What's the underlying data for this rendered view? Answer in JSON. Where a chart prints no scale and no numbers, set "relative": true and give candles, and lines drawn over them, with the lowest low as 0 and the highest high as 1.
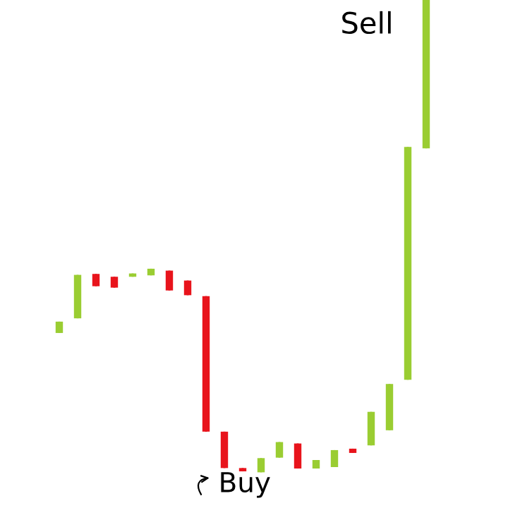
{
  "chart_data": {
    "type": "candlestick",
    "relative": true,
    "categories": [
      null,
      null,
      null,
      null,
      null,
      null,
      null,
      null,
      null,
      null,
      null,
      null,
      null,
      null,
      null,
      null,
      null,
      null,
      null,
      null,
      null
    ],
    "ohlc": [
      [
        0.295,
        0.319,
        0.295,
        0.319
      ],
      [
        0.326,
        0.418,
        0.326,
        0.418
      ],
      [
        0.42,
        0.42,
        0.394,
        0.394
      ],
      [
        0.414,
        0.414,
        0.391,
        0.391
      ],
      [
        0.414,
        0.421,
        0.414,
        0.421
      ],
      [
        0.417,
        0.431,
        0.417,
        0.431
      ],
      [
        0.427,
        0.427,
        0.385,
        0.385
      ],
      [
        0.406,
        0.406,
        0.375,
        0.375
      ],
      [
        0.373,
        0.373,
        0.086,
        0.086
      ],
      [
        0.086,
        0.086,
        0.009,
        0.009
      ],
      [
        0.009,
        0.009,
        0.002,
        0.002
      ],
      [
        0,
        0.03,
        0,
        0.03
      ],
      [
        0.031,
        0.064,
        0.031,
        0.064
      ],
      [
        0.061,
        0.061,
        0.008,
        0.008
      ],
      [
        0.008,
        0.026,
        0.008,
        0.026
      ],
      [
        0.011,
        0.047,
        0.011,
        0.047
      ],
      [
        0.05,
        0.05,
        0.041,
        0.041
      ],
      [
        0.057,
        0.128,
        0.057,
        0.128
      ],
      [
        0.089,
        0.187,
        0.089,
        0.187
      ],
      [
        0.196,
        0.689,
        0.196,
        0.689
      ],
      [
        0.686,
        1,
        0.686,
        1
      ]
    ],
    "colors": [
      "#9acd32",
      "#9acd32",
      "#e8141c",
      "#e8141c",
      "#9acd32",
      "#9acd32",
      "#e8141c",
      "#e8141c",
      "#e8141c",
      "#e8141c",
      "#e8141c",
      "#9acd32",
      "#9acd32",
      "#e8141c",
      "#9acd32",
      "#9acd32",
      "#e8141c",
      "#9acd32",
      "#9acd32",
      "#9acd32",
      "#9acd32"
    ],
    "annotations": [
      "Sell",
      "Buy"
    ]
  }
}
